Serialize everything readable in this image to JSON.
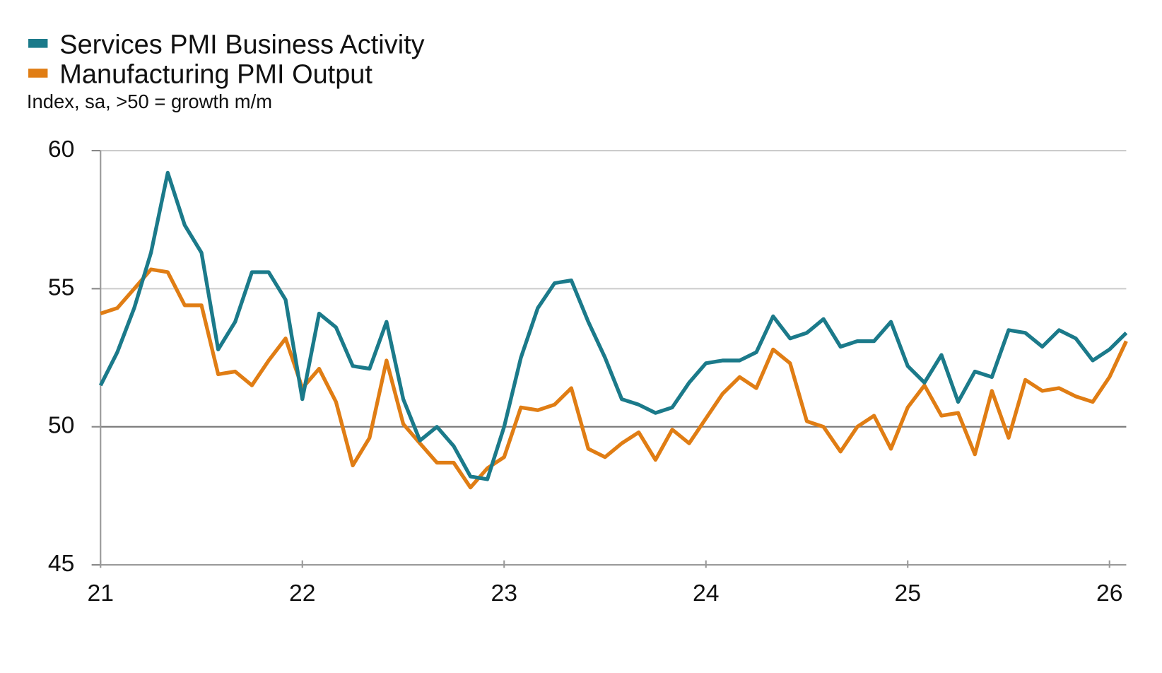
{
  "chart_data": {
    "type": "line",
    "subtitle": "Index, sa, >50 = growth m/m",
    "x": [
      21,
      21.083,
      21.167,
      21.25,
      21.333,
      21.417,
      21.5,
      21.583,
      21.667,
      21.75,
      21.833,
      21.917,
      22,
      22.083,
      22.167,
      22.25,
      22.333,
      22.417,
      22.5,
      22.583,
      22.667,
      22.75,
      22.833,
      22.917,
      23,
      23.083,
      23.167,
      23.25,
      23.333,
      23.417,
      23.5,
      23.583,
      23.667,
      23.75,
      23.833,
      23.917,
      24,
      24.083,
      24.167,
      24.25,
      24.333,
      24.417,
      24.5,
      24.583,
      24.667,
      24.75,
      24.833,
      24.917,
      25,
      25.083,
      25.167,
      25.25,
      25.333,
      25.417,
      25.5,
      25.583,
      25.667,
      25.75,
      25.833,
      25.917,
      26,
      26.083
    ],
    "series": [
      {
        "name": "Services PMI Business Activity",
        "color": "#1b7a8a",
        "values": [
          51.5,
          52.7,
          54.3,
          56.3,
          59.2,
          57.3,
          56.3,
          52.8,
          53.8,
          55.6,
          55.6,
          54.6,
          51.0,
          54.1,
          53.6,
          52.2,
          52.1,
          53.8,
          51.0,
          49.5,
          50.0,
          49.3,
          48.2,
          48.1,
          50.0,
          52.5,
          54.3,
          55.2,
          55.3,
          53.8,
          52.5,
          51.0,
          50.8,
          50.5,
          50.7,
          51.6,
          52.3,
          52.4,
          52.4,
          52.7,
          54.0,
          53.2,
          53.4,
          53.9,
          52.9,
          53.1,
          53.1,
          53.8,
          52.2,
          51.6,
          52.6,
          50.9,
          52.0,
          51.8,
          53.5,
          53.4,
          52.9,
          53.5,
          53.2,
          52.4,
          52.8,
          53.4
        ]
      },
      {
        "name": "Manufacturing PMI Output",
        "color": "#e07d14",
        "values": [
          54.1,
          54.3,
          55.0,
          55.7,
          55.6,
          54.4,
          54.4,
          51.9,
          52.0,
          51.5,
          52.4,
          53.2,
          51.4,
          52.1,
          50.9,
          48.6,
          49.6,
          52.4,
          50.1,
          49.4,
          48.7,
          48.7,
          47.8,
          48.5,
          48.9,
          50.7,
          50.6,
          50.8,
          51.4,
          49.2,
          48.9,
          49.4,
          49.8,
          48.8,
          49.9,
          49.4,
          50.3,
          51.2,
          51.8,
          51.4,
          52.8,
          52.3,
          50.2,
          50.0,
          49.1,
          50.0,
          50.4,
          49.2,
          50.7,
          51.5,
          50.4,
          50.5,
          49.0,
          51.3,
          49.6,
          51.7,
          51.3,
          51.4,
          51.1,
          50.9,
          51.8,
          53.1
        ]
      }
    ],
    "xlim": [
      21,
      26.083
    ],
    "xticks": [
      21,
      22,
      23,
      24,
      25,
      26
    ],
    "ylim": [
      45,
      60
    ],
    "yticks": [
      45,
      50,
      55,
      60
    ],
    "grid": true,
    "legend": "top-left"
  }
}
